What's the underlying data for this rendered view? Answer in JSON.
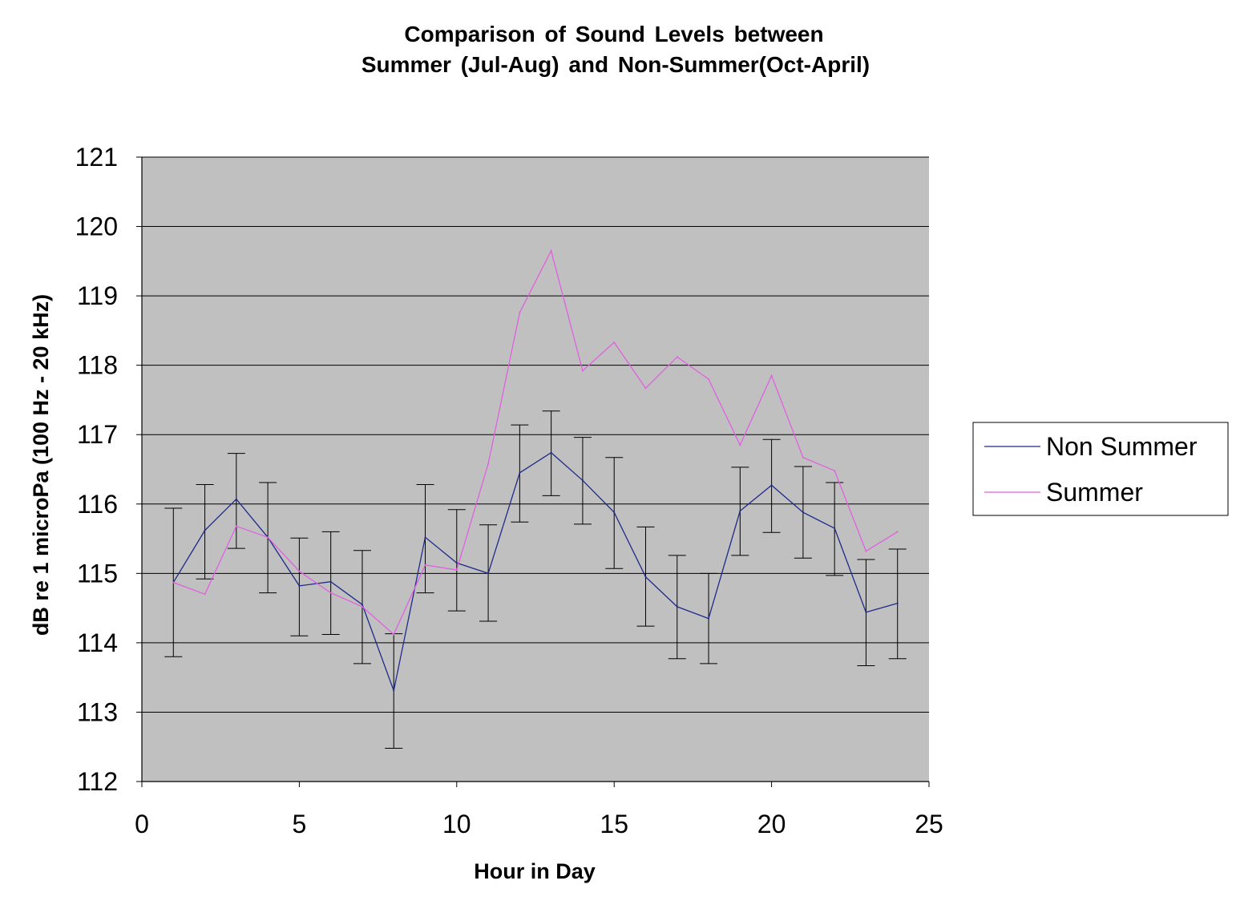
{
  "chart_data": {
    "type": "line",
    "title_line1": "Comparison of Sound Levels between",
    "title_line2": "Summer (Jul-Aug) and Non-Summer(Oct-April)",
    "xlabel": "Hour in Day",
    "ylabel": "dB re 1 microPa (100 Hz - 20 kHz)",
    "xlim": [
      0,
      25
    ],
    "ylim": [
      112,
      121
    ],
    "xticks": [
      0,
      5,
      10,
      15,
      20,
      25
    ],
    "yticks": [
      112,
      113,
      114,
      115,
      116,
      117,
      118,
      119,
      120,
      121
    ],
    "grid": "horizontal",
    "plot_background": "#c0c0c0",
    "legend_position": "right",
    "x": [
      1,
      2,
      3,
      4,
      5,
      6,
      7,
      8,
      9,
      10,
      11,
      12,
      13,
      14,
      15,
      16,
      17,
      18,
      19,
      20,
      21,
      22,
      23,
      24
    ],
    "series": [
      {
        "name": "Non Summer",
        "color": "#1f2a8a",
        "values": [
          114.87,
          115.62,
          116.07,
          115.52,
          114.82,
          114.88,
          114.55,
          113.31,
          115.52,
          115.15,
          115.0,
          116.45,
          116.74,
          116.34,
          115.88,
          114.95,
          114.52,
          114.35,
          115.9,
          116.27,
          115.88,
          115.65,
          114.44,
          114.57
        ],
        "err_low": [
          113.8,
          114.92,
          115.36,
          114.72,
          114.1,
          114.12,
          113.7,
          112.48,
          114.72,
          114.46,
          114.31,
          115.74,
          116.12,
          115.71,
          115.07,
          114.24,
          113.77,
          113.7,
          115.26,
          115.59,
          115.22,
          114.97,
          113.67,
          113.77
        ],
        "err_high": [
          115.94,
          116.28,
          116.73,
          116.31,
          115.51,
          115.6,
          115.33,
          114.13,
          116.28,
          115.92,
          115.7,
          117.14,
          117.34,
          116.96,
          116.67,
          115.67,
          115.26,
          115.0,
          116.53,
          116.93,
          116.54,
          116.31,
          115.2,
          115.35
        ]
      },
      {
        "name": "Summer",
        "color": "#e060e0",
        "values": [
          114.87,
          114.7,
          115.68,
          115.52,
          115.03,
          114.72,
          114.52,
          114.12,
          115.12,
          115.05,
          116.58,
          118.76,
          119.65,
          117.92,
          118.33,
          117.67,
          118.12,
          117.8,
          116.85,
          117.85,
          116.67,
          116.48,
          115.32,
          115.6
        ]
      }
    ]
  }
}
